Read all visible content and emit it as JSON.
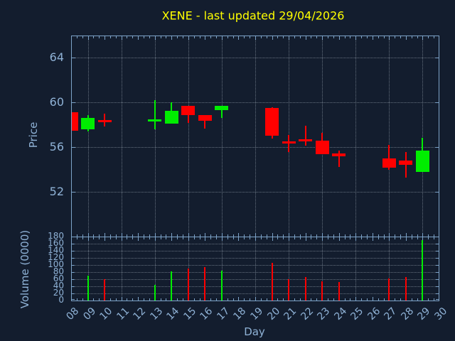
{
  "chart_data": {
    "type": "candlestick",
    "title": "XENE - last updated 29/04/2026",
    "x_axis": {
      "label": "Day",
      "tick_labels": [
        "08",
        "09",
        "10",
        "11",
        "12",
        "13",
        "14",
        "15",
        "16",
        "17",
        "18",
        "19",
        "20",
        "21",
        "22",
        "23",
        "24",
        "25",
        "26",
        "27",
        "28",
        "29",
        "30"
      ],
      "range": [
        8,
        30
      ],
      "gridline_days": [
        9,
        11,
        13,
        15,
        17,
        19,
        21,
        23,
        25,
        27,
        29
      ],
      "minor_ticks_per_day": 3
    },
    "price_axis": {
      "label": "Price",
      "ticks": [
        64,
        60,
        56,
        52
      ],
      "range": [
        48,
        66
      ],
      "grid": true
    },
    "volume_axis": {
      "label": "Volume (0000)",
      "ticks": [
        180,
        160,
        140,
        120,
        100,
        80,
        60,
        40,
        20,
        0
      ],
      "range": [
        0,
        180
      ],
      "grid": true
    },
    "series": [
      {
        "day": 8,
        "open": 59.1,
        "high": 59.1,
        "low": 57.5,
        "close": 57.5,
        "direction": "down",
        "volume": null
      },
      {
        "day": 9,
        "open": 57.6,
        "high": 58.9,
        "low": 57.4,
        "close": 58.6,
        "direction": "up",
        "volume": 70
      },
      {
        "day": 10,
        "open": 58.4,
        "high": 59.0,
        "low": 57.85,
        "close": 58.3,
        "direction": "down",
        "volume": 60
      },
      {
        "day": 13,
        "open": 58.4,
        "high": 60.2,
        "low": 57.6,
        "close": 58.5,
        "direction": "up",
        "volume": 44
      },
      {
        "day": 14,
        "open": 58.1,
        "high": 60.0,
        "low": 58.1,
        "close": 59.25,
        "direction": "up",
        "volume": 82
      },
      {
        "day": 15,
        "open": 59.7,
        "high": 59.7,
        "low": 58.2,
        "close": 58.9,
        "direction": "down",
        "volume": 90
      },
      {
        "day": 16,
        "open": 58.9,
        "high": 58.9,
        "low": 57.65,
        "close": 58.35,
        "direction": "down",
        "volume": 94
      },
      {
        "day": 17,
        "open": 59.3,
        "high": 59.7,
        "low": 58.6,
        "close": 59.7,
        "direction": "up",
        "volume": 84
      },
      {
        "day": 20,
        "open": 59.5,
        "high": 59.6,
        "low": 56.75,
        "close": 57.0,
        "direction": "down",
        "volume": 106
      },
      {
        "day": 21,
        "open": 56.5,
        "high": 57.1,
        "low": 55.6,
        "close": 56.4,
        "direction": "down",
        "volume": 61
      },
      {
        "day": 22,
        "open": 56.7,
        "high": 57.9,
        "low": 56.15,
        "close": 56.6,
        "direction": "down",
        "volume": 67
      },
      {
        "day": 23,
        "open": 56.6,
        "high": 57.3,
        "low": 55.4,
        "close": 55.4,
        "direction": "down",
        "volume": 55
      },
      {
        "day": 24,
        "open": 55.45,
        "high": 55.7,
        "low": 54.25,
        "close": 55.2,
        "direction": "down",
        "volume": 53
      },
      {
        "day": 27,
        "open": 55.0,
        "high": 56.2,
        "low": 54.0,
        "close": 54.15,
        "direction": "down",
        "volume": 63
      },
      {
        "day": 28,
        "open": 54.8,
        "high": 55.6,
        "low": 53.3,
        "close": 54.45,
        "direction": "down",
        "volume": 67
      },
      {
        "day": 29,
        "open": 53.8,
        "high": 56.85,
        "low": 53.8,
        "close": 55.7,
        "direction": "up",
        "volume": 170
      }
    ],
    "colors": {
      "background": "#131d2e",
      "up": "#00ee00",
      "down": "#ff0000",
      "title": "#ffff00",
      "axis_text": "#8fb2d6",
      "spine": "#7da3c8",
      "grid": "#b7c3cd"
    }
  }
}
